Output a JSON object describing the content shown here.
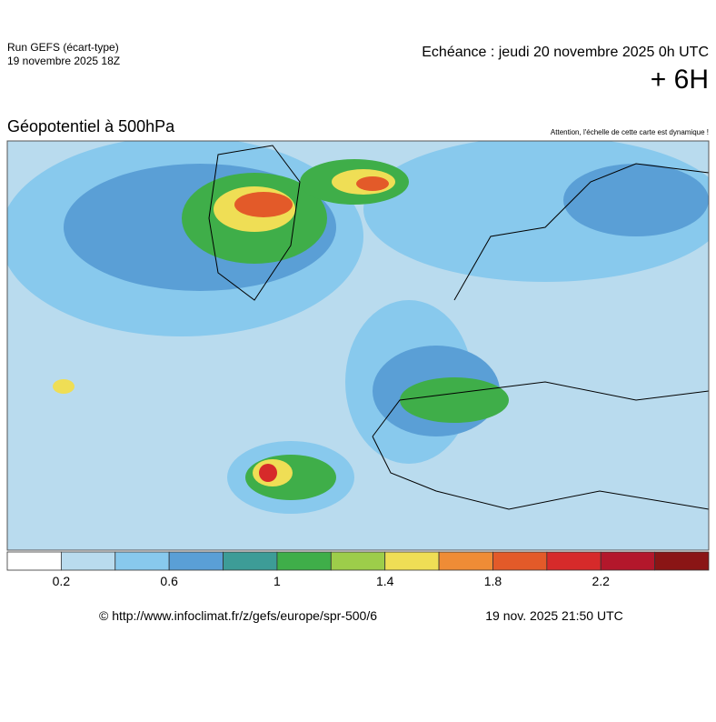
{
  "header": {
    "run": "Run GEFS (écart-type)",
    "run_date": "19 novembre 2025 18Z",
    "forecast": "Echéance : jeudi 20 novembre 2025 0h UTC",
    "lead": "+ 6H"
  },
  "map": {
    "title": "Géopotentiel à 500hPa",
    "note": "Attention, l'échelle de cette carte est dynamique !"
  },
  "legend": {
    "colors": [
      "#ffffff",
      "#b9dbee",
      "#88c9ed",
      "#5a9fd6",
      "#3d9c97",
      "#3fae49",
      "#9dcd4a",
      "#efde55",
      "#ef8c36",
      "#e35a29",
      "#d62a2a",
      "#b3172b",
      "#8a1515"
    ],
    "ticks": [
      "0.2",
      "0.6",
      "1",
      "1.4",
      "1.8",
      "2.2"
    ]
  },
  "footer": {
    "url": "© http://www.infoclimat.fr/z/gefs/europe/spr-500/6",
    "timestamp": "19 nov. 2025 21:50 UTC"
  }
}
